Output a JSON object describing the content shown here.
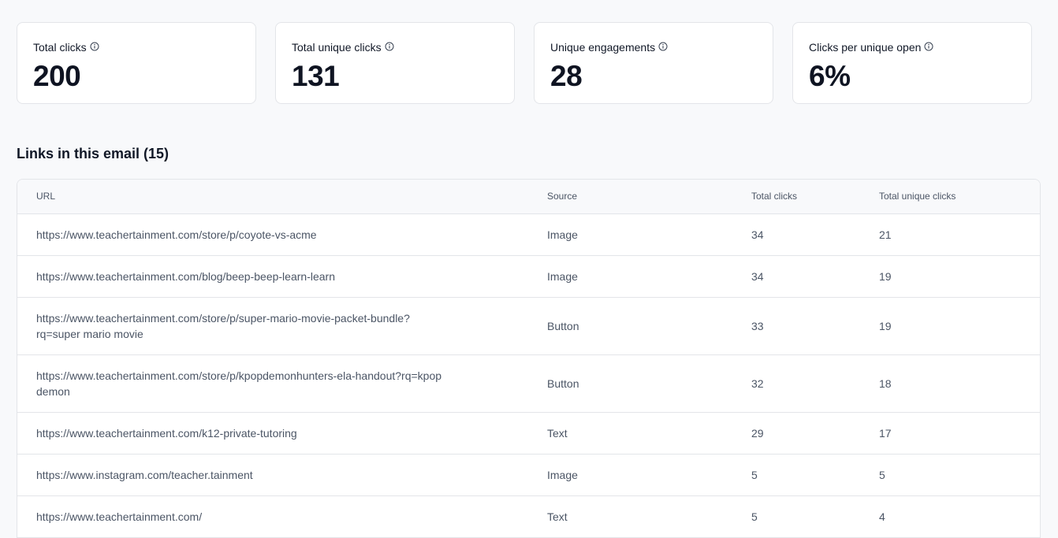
{
  "stats": [
    {
      "label": "Total clicks",
      "value": "200",
      "icon": "info-icon"
    },
    {
      "label": "Total unique clicks",
      "value": "131",
      "icon": "info-icon"
    },
    {
      "label": "Unique engagements",
      "value": "28",
      "icon": "info-icon"
    },
    {
      "label": "Clicks per unique open",
      "value": "6%",
      "icon": "info-icon"
    }
  ],
  "links_section": {
    "title": "Links in this email (15)",
    "columns": {
      "url": "URL",
      "source": "Source",
      "total_clicks": "Total clicks",
      "total_unique_clicks": "Total unique clicks"
    },
    "rows": [
      {
        "url": "https://www.teachertainment.com/store/p/coyote-vs-acme",
        "source": "Image",
        "total_clicks": "34",
        "total_unique_clicks": "21"
      },
      {
        "url": "https://www.teachertainment.com/blog/beep-beep-learn-learn",
        "source": "Image",
        "total_clicks": "34",
        "total_unique_clicks": "19"
      },
      {
        "url_line1": "https://www.teachertainment.com/store/p/super-mario-movie-packet-bundle?",
        "url_line2": "rq=super mario movie",
        "source": "Button",
        "total_clicks": "33",
        "total_unique_clicks": "19"
      },
      {
        "url_line1": "https://www.teachertainment.com/store/p/kpopdemonhunters-ela-handout?rq=kpop",
        "url_line2": "demon",
        "source": "Button",
        "total_clicks": "32",
        "total_unique_clicks": "18"
      },
      {
        "url": "https://www.teachertainment.com/k12-private-tutoring",
        "source": "Text",
        "total_clicks": "29",
        "total_unique_clicks": "17"
      },
      {
        "url": "https://www.instagram.com/teacher.tainment",
        "source": "Image",
        "total_clicks": "5",
        "total_unique_clicks": "5"
      },
      {
        "url": "https://www.teachertainment.com/",
        "source": "Text",
        "total_clicks": "5",
        "total_unique_clicks": "4"
      }
    ]
  }
}
